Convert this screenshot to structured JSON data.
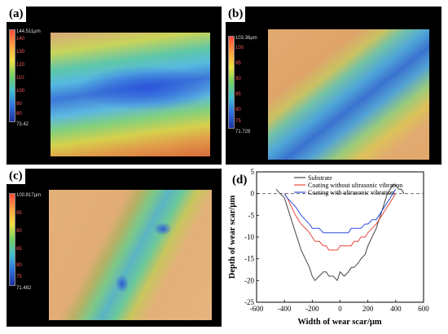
{
  "panels": [
    {
      "label": "(a)",
      "colorbar": {
        "max": "144.511µm",
        "ticks": [
          "140",
          "130",
          "120",
          "110",
          "100",
          "90",
          "80"
        ],
        "min": "73.42"
      }
    },
    {
      "label": "(b)",
      "colorbar": {
        "max": "103.36µm",
        "ticks": [
          "100",
          "95",
          "90",
          "85",
          "80",
          "75"
        ],
        "min": "71.728"
      }
    },
    {
      "label": "(c)",
      "colorbar": {
        "max": "100.817µm",
        "ticks": [
          "95",
          "90",
          "85",
          "80",
          "75"
        ],
        "min": "71.482"
      }
    }
  ],
  "chart_data": {
    "label": "(d)",
    "type": "line",
    "xlabel": "Width of wear scar/µm",
    "ylabel": "Depth of wear scar/µm",
    "xlim": [
      -600,
      600
    ],
    "ylim": [
      -25,
      5
    ],
    "xticks": [
      -600,
      -400,
      -200,
      0,
      200,
      400,
      600
    ],
    "yticks": [
      -25,
      -20,
      -15,
      -10,
      -5,
      0,
      5
    ],
    "reference_line": {
      "y": 0,
      "style": "dashed"
    },
    "legend_position": "top-right",
    "series": [
      {
        "name": "Substrate",
        "color": "#444444",
        "x": [
          -460,
          -430,
          -400,
          -380,
          -350,
          -320,
          -300,
          -280,
          -250,
          -220,
          -200,
          -180,
          -150,
          -120,
          -100,
          -80,
          -50,
          -20,
          0,
          30,
          60,
          80,
          100,
          130,
          150,
          180,
          200,
          230,
          260,
          280,
          300,
          320,
          340,
          360,
          380,
          400,
          420,
          440,
          460
        ],
        "y": [
          1,
          0,
          -1,
          -3,
          -6,
          -9,
          -11,
          -13,
          -15,
          -17,
          -19,
          -20,
          -19,
          -18,
          -18,
          -19,
          -19,
          -20,
          -18,
          -19,
          -18,
          -17,
          -17,
          -16,
          -15,
          -14,
          -12,
          -10,
          -8,
          -6,
          -4,
          -2,
          0,
          1,
          2,
          2,
          1,
          1,
          0
        ]
      },
      {
        "name": "Coating without ultrasonic vibration",
        "color": "#e8473a",
        "x": [
          -400,
          -380,
          -350,
          -320,
          -300,
          -280,
          -250,
          -220,
          -200,
          -180,
          -150,
          -120,
          -100,
          -80,
          -50,
          -20,
          0,
          30,
          60,
          80,
          100,
          130,
          150,
          180,
          200,
          230,
          260,
          280,
          300,
          320,
          340,
          360,
          380,
          400
        ],
        "y": [
          0,
          -1,
          -3,
          -5,
          -6,
          -7,
          -8,
          -9,
          -10,
          -11,
          -11,
          -12,
          -12,
          -13,
          -13,
          -13,
          -12,
          -12,
          -12,
          -12,
          -11,
          -11,
          -10,
          -10,
          -9,
          -8,
          -7,
          -6,
          -5,
          -4,
          -3,
          -2,
          -1,
          0
        ]
      },
      {
        "name": "Coating with ultrasonic vibration",
        "color": "#2d4fe0",
        "x": [
          -400,
          -380,
          -350,
          -320,
          -300,
          -280,
          -250,
          -220,
          -200,
          -180,
          -150,
          -120,
          -100,
          -80,
          -50,
          -20,
          0,
          30,
          60,
          80,
          100,
          130,
          150,
          180,
          200,
          230,
          260,
          280,
          300,
          320,
          340,
          360,
          380,
          400
        ],
        "y": [
          0,
          -1,
          -2,
          -3,
          -4,
          -5,
          -6,
          -7,
          -8,
          -8,
          -8,
          -9,
          -9,
          -9,
          -9,
          -9,
          -9,
          -9,
          -9,
          -8,
          -8,
          -8,
          -8,
          -7,
          -7,
          -6,
          -6,
          -5,
          -4,
          -3,
          -2,
          -1,
          0,
          1
        ]
      }
    ]
  }
}
